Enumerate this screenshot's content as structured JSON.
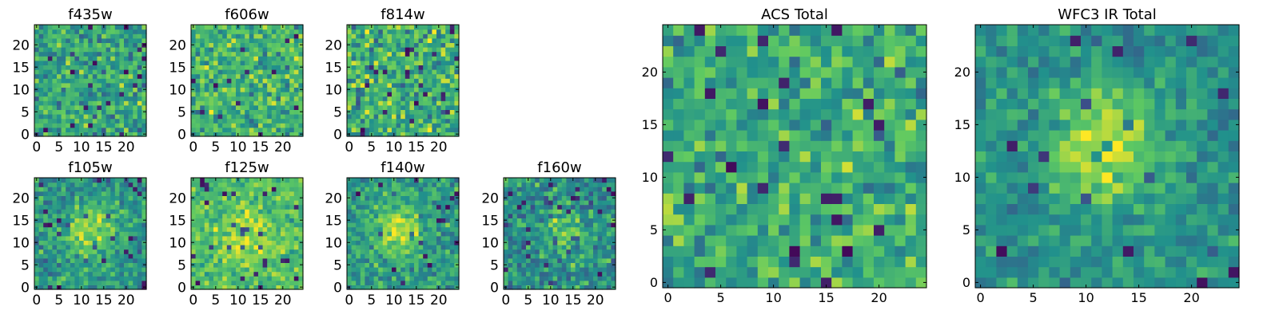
{
  "figure": {
    "colormap": "viridis",
    "colormap_stops": [
      "#440154",
      "#3b528b",
      "#21918c",
      "#5ec962",
      "#fde725"
    ]
  },
  "chart_data": [
    {
      "type": "heatmap",
      "title": "f435w",
      "grid_size": 25,
      "xlim": [
        0,
        24
      ],
      "ylim": [
        0,
        24
      ],
      "xticks": [
        0,
        5,
        10,
        15,
        20
      ],
      "yticks": [
        0,
        5,
        10,
        15,
        20
      ],
      "xlabel": "",
      "ylabel": "",
      "pattern": "noise",
      "seed": 11,
      "base": 0.58,
      "spread": 0.17,
      "blob": null
    },
    {
      "type": "heatmap",
      "title": "f606w",
      "grid_size": 25,
      "xlim": [
        0,
        24
      ],
      "ylim": [
        0,
        24
      ],
      "xticks": [
        0,
        5,
        10,
        15,
        20
      ],
      "yticks": [
        0,
        5,
        10,
        15,
        20
      ],
      "xlabel": "",
      "ylabel": "",
      "pattern": "noise",
      "seed": 23,
      "base": 0.66,
      "spread": 0.16,
      "blob": null
    },
    {
      "type": "heatmap",
      "title": "f814w",
      "grid_size": 25,
      "xlim": [
        0,
        24
      ],
      "ylim": [
        0,
        24
      ],
      "xticks": [
        0,
        5,
        10,
        15,
        20
      ],
      "yticks": [
        0,
        5,
        10,
        15,
        20
      ],
      "xlabel": "",
      "ylabel": "",
      "pattern": "noise",
      "seed": 37,
      "base": 0.64,
      "spread": 0.19,
      "blob": null
    },
    {
      "type": "heatmap",
      "title": "f105w",
      "grid_size": 25,
      "xlim": [
        0,
        24
      ],
      "ylim": [
        0,
        24
      ],
      "xticks": [
        0,
        5,
        10,
        15,
        20
      ],
      "yticks": [
        0,
        5,
        10,
        15,
        20
      ],
      "xlabel": "",
      "ylabel": "",
      "pattern": "source",
      "seed": 41,
      "base": 0.52,
      "spread": 0.14,
      "blob": {
        "cx": 12,
        "cy": 13,
        "sigma": 3.5,
        "amp": 0.38
      }
    },
    {
      "type": "heatmap",
      "title": "f125w",
      "grid_size": 25,
      "xlim": [
        0,
        24
      ],
      "ylim": [
        0,
        24
      ],
      "xticks": [
        0,
        5,
        10,
        15,
        20
      ],
      "yticks": [
        0,
        5,
        10,
        15,
        20
      ],
      "xlabel": "",
      "ylabel": "",
      "pattern": "source",
      "seed": 53,
      "base": 0.68,
      "spread": 0.12,
      "blob": {
        "cx": 12,
        "cy": 11,
        "sigma": 5,
        "amp": 0.18
      }
    },
    {
      "type": "heatmap",
      "title": "f140w",
      "grid_size": 25,
      "xlim": [
        0,
        24
      ],
      "ylim": [
        0,
        24
      ],
      "xticks": [
        0,
        5,
        10,
        15,
        20
      ],
      "yticks": [
        0,
        5,
        10,
        15,
        20
      ],
      "xlabel": "",
      "ylabel": "",
      "pattern": "source",
      "seed": 67,
      "base": 0.55,
      "spread": 0.13,
      "blob": {
        "cx": 11,
        "cy": 13,
        "sigma": 3.5,
        "amp": 0.38
      }
    },
    {
      "type": "heatmap",
      "title": "f160w",
      "grid_size": 25,
      "xlim": [
        0,
        24
      ],
      "ylim": [
        0,
        24
      ],
      "xticks": [
        0,
        5,
        10,
        15,
        20
      ],
      "yticks": [
        0,
        5,
        10,
        15,
        20
      ],
      "xlabel": "",
      "ylabel": "",
      "pattern": "source",
      "seed": 71,
      "base": 0.5,
      "spread": 0.15,
      "blob": {
        "cx": 13,
        "cy": 12,
        "sigma": 3,
        "amp": 0.3
      }
    },
    {
      "type": "heatmap",
      "title": "ACS Total",
      "grid_size": 25,
      "xlim": [
        0,
        24
      ],
      "ylim": [
        0,
        24
      ],
      "xticks": [
        0,
        5,
        10,
        15,
        20
      ],
      "yticks": [
        0,
        5,
        10,
        15,
        20
      ],
      "xlabel": "",
      "ylabel": "",
      "pattern": "noise",
      "seed": 83,
      "base": 0.62,
      "spread": 0.16,
      "blob": null
    },
    {
      "type": "heatmap",
      "title": "WFC3 IR Total",
      "grid_size": 25,
      "xlim": [
        0,
        24
      ],
      "ylim": [
        0,
        24
      ],
      "xticks": [
        0,
        5,
        10,
        15,
        20
      ],
      "yticks": [
        0,
        5,
        10,
        15,
        20
      ],
      "xlabel": "",
      "ylabel": "",
      "pattern": "source",
      "seed": 97,
      "base": 0.5,
      "spread": 0.1,
      "blob": {
        "cx": 12,
        "cy": 13,
        "sigma": 3.8,
        "amp": 0.42
      }
    }
  ]
}
